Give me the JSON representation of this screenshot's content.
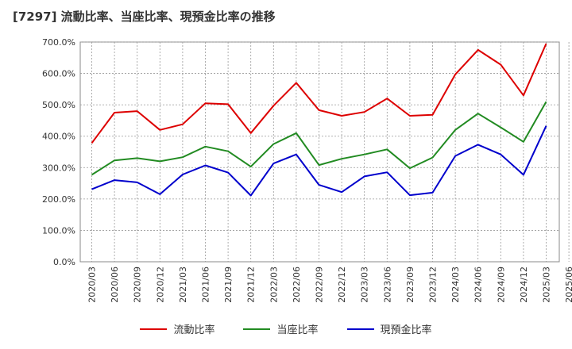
{
  "chart_data": {
    "type": "line",
    "title": "[7297]  流動比率、当座比率、現預金比率の推移",
    "categories": [
      "2020/03",
      "2020/06",
      "2020/09",
      "2020/12",
      "2021/03",
      "2021/06",
      "2021/09",
      "2021/12",
      "2022/03",
      "2022/06",
      "2022/09",
      "2022/12",
      "2023/03",
      "2023/06",
      "2023/09",
      "2023/12",
      "2024/03",
      "2024/06",
      "2024/09",
      "2024/12",
      "2025/03",
      "2025/06"
    ],
    "yticks": [
      "0.0%",
      "100.0%",
      "200.0%",
      "300.0%",
      "400.0%",
      "500.0%",
      "600.0%",
      "700.0%"
    ],
    "ylim": [
      0,
      700
    ],
    "series": [
      {
        "name": "流動比率",
        "color": "#dd0000",
        "values": [
          378,
          475,
          480,
          420,
          438,
          505,
          502,
          410,
          497,
          570,
          483,
          465,
          477,
          520,
          465,
          468,
          597,
          675,
          628,
          530,
          695,
          null
        ]
      },
      {
        "name": "当座比率",
        "color": "#228b22",
        "values": [
          277,
          323,
          330,
          320,
          333,
          367,
          352,
          303,
          375,
          410,
          308,
          328,
          342,
          358,
          298,
          332,
          420,
          472,
          428,
          382,
          510,
          null
        ]
      },
      {
        "name": "現預金比率",
        "color": "#0000cc",
        "values": [
          231,
          260,
          253,
          215,
          278,
          307,
          284,
          211,
          313,
          342,
          245,
          222,
          272,
          285,
          212,
          220,
          337,
          373,
          342,
          277,
          433,
          null
        ]
      }
    ]
  }
}
